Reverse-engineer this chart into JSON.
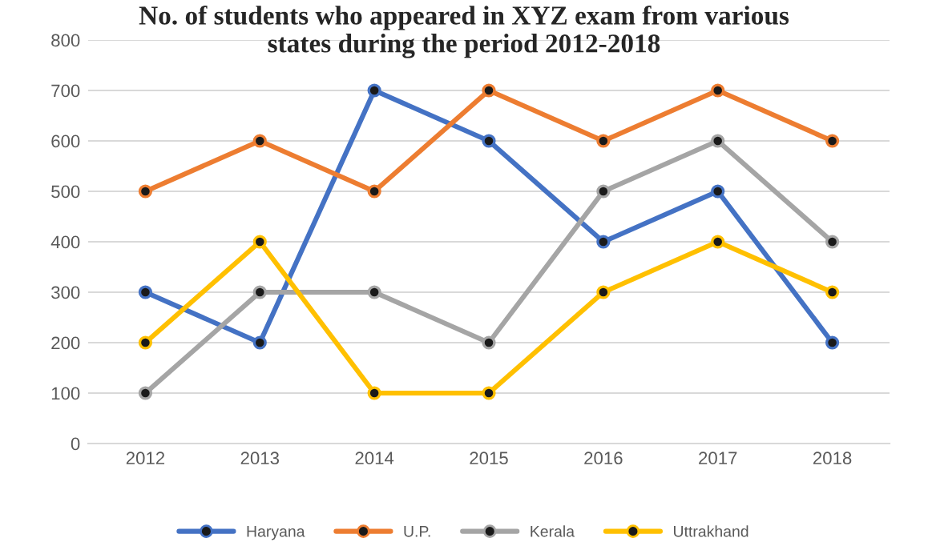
{
  "chart_data": {
    "type": "line",
    "title": "No. of students who appeared in XYZ exam from various\nstates during the period 2012-2018",
    "categories": [
      "2012",
      "2013",
      "2014",
      "2015",
      "2016",
      "2017",
      "2018"
    ],
    "series": [
      {
        "name": "Haryana",
        "color": "#4472c4",
        "values": [
          300,
          200,
          700,
          600,
          400,
          500,
          200
        ]
      },
      {
        "name": "U.P.",
        "color": "#ed7d31",
        "values": [
          500,
          600,
          500,
          700,
          600,
          700,
          600
        ]
      },
      {
        "name": "Kerala",
        "color": "#a5a5a5",
        "values": [
          100,
          300,
          300,
          200,
          500,
          600,
          400
        ]
      },
      {
        "name": "Uttrakhand",
        "color": "#ffc000",
        "values": [
          200,
          400,
          100,
          100,
          300,
          400,
          300
        ]
      }
    ],
    "ylim": [
      0,
      800
    ],
    "yticks": [
      0,
      100,
      200,
      300,
      400,
      500,
      600,
      700,
      800
    ],
    "grid": "y",
    "legend": "bottom",
    "marker": "circle",
    "line_style": "solid"
  }
}
